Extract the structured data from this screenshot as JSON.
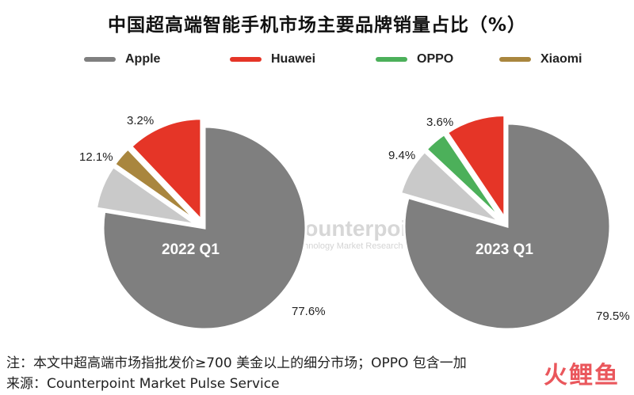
{
  "title": "中国超高端智能手机市场主要品牌销量占比（%）",
  "legend": [
    {
      "name": "Apple",
      "color": "#7f7f7f"
    },
    {
      "name": "Huawei",
      "color": "#e53527"
    },
    {
      "name": "OPPO",
      "color": "#4cb05a"
    },
    {
      "name": "Xiaomi",
      "color": "#a9863e"
    }
  ],
  "watermark": {
    "name": "Counterpoint",
    "tagline": "Technology Market Research"
  },
  "chart_data": [
    {
      "type": "pie",
      "title": "2022 Q1",
      "slices": [
        {
          "label": "Apple",
          "value": 77.6,
          "display": "77.6%",
          "color": "#7f7f7f"
        },
        {
          "label": "Others",
          "value": 7.1,
          "display": "",
          "color": "#c9c9c9"
        },
        {
          "label": "Xiaomi",
          "value": 3.2,
          "display": "3.2%",
          "color": "#a9863e"
        },
        {
          "label": "Huawei",
          "value": 12.1,
          "display": "12.1%",
          "color": "#e53527"
        }
      ]
    },
    {
      "type": "pie",
      "title": "2023 Q1",
      "slices": [
        {
          "label": "Apple",
          "value": 79.5,
          "display": "79.5%",
          "color": "#7f7f7f"
        },
        {
          "label": "Others",
          "value": 7.5,
          "display": "",
          "color": "#c9c9c9"
        },
        {
          "label": "OPPO",
          "value": 3.6,
          "display": "3.6%",
          "color": "#4cb05a"
        },
        {
          "label": "Huawei",
          "value": 9.4,
          "display": "9.4%",
          "color": "#e53527"
        }
      ]
    }
  ],
  "notes": {
    "note": "注：本文中超高端市场指批发价≥700 美金以上的细分市场；OPPO 包含一加",
    "source": "来源：Counterpoint Market Pulse Service"
  },
  "corner_mark": "火鲤鱼"
}
